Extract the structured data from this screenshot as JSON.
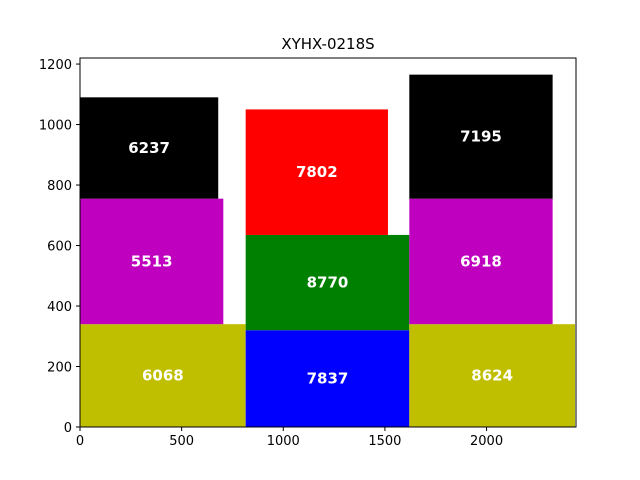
{
  "chart_data": {
    "type": "bar",
    "title": "XYHX-0218S",
    "xlabel": "",
    "ylabel": "",
    "xlim": [
      0,
      2440
    ],
    "ylim": [
      0,
      1220
    ],
    "xticks": [
      0,
      500,
      1000,
      1500,
      2000
    ],
    "yticks": [
      0,
      200,
      400,
      600,
      800,
      1000,
      1200
    ],
    "grid": false,
    "rects": [
      {
        "label": "6068",
        "x0": 0,
        "x1": 815,
        "y0": 0,
        "y1": 340,
        "color": "#bfbf00"
      },
      {
        "label": "5513",
        "x0": 0,
        "x1": 705,
        "y0": 340,
        "y1": 755,
        "color": "#bf00bf"
      },
      {
        "label": "6237",
        "x0": 0,
        "x1": 680,
        "y0": 755,
        "y1": 1090,
        "color": "#000000"
      },
      {
        "label": "7837",
        "x0": 815,
        "x1": 1620,
        "y0": 0,
        "y1": 320,
        "color": "#0000ff"
      },
      {
        "label": "8770",
        "x0": 815,
        "x1": 1620,
        "y0": 320,
        "y1": 635,
        "color": "#008000"
      },
      {
        "label": "7802",
        "x0": 815,
        "x1": 1515,
        "y0": 635,
        "y1": 1050,
        "color": "#ff0000"
      },
      {
        "label": "8624",
        "x0": 1620,
        "x1": 2435,
        "y0": 0,
        "y1": 340,
        "color": "#bfbf00"
      },
      {
        "label": "6918",
        "x0": 1620,
        "x1": 2325,
        "y0": 340,
        "y1": 755,
        "color": "#bf00bf"
      },
      {
        "label": "7195",
        "x0": 1620,
        "x1": 2325,
        "y0": 755,
        "y1": 1165,
        "color": "#000000"
      }
    ]
  }
}
